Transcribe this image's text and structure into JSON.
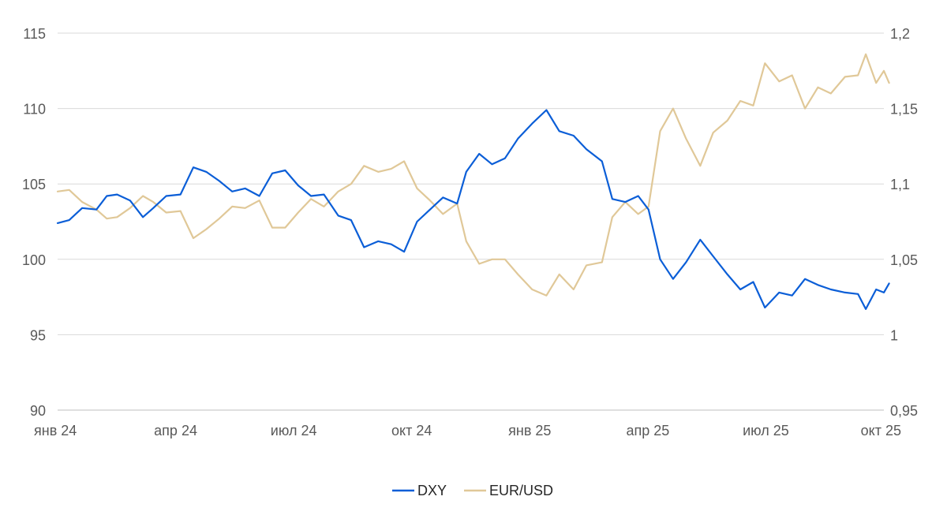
{
  "chart_data": {
    "type": "line",
    "title": "",
    "xlabel": "",
    "ylabel": "",
    "x_ticks": [
      "янв 24",
      "апр 24",
      "июл 24",
      "окт 24",
      "янв 25",
      "апр 25",
      "июл 25",
      "окт 25"
    ],
    "y_left": {
      "ticks": [
        "90",
        "95",
        "100",
        "105",
        "110",
        "115"
      ],
      "lim": [
        90,
        115
      ]
    },
    "y_right": {
      "ticks": [
        "0,95",
        "1",
        "1,05",
        "1,1",
        "1,15",
        "1,2"
      ],
      "lim": [
        0.95,
        1.2
      ]
    },
    "grid": true,
    "legend": "bottom-center",
    "series": [
      {
        "name": "DXY",
        "axis": "left",
        "color": "#0b5ed7",
        "points": [
          [
            "2024-01-01",
            102.4
          ],
          [
            "2024-01-10",
            102.6
          ],
          [
            "2024-01-20",
            103.4
          ],
          [
            "2024-01-31",
            103.3
          ],
          [
            "2024-02-08",
            104.2
          ],
          [
            "2024-02-16",
            104.3
          ],
          [
            "2024-02-26",
            103.9
          ],
          [
            "2024-03-07",
            102.8
          ],
          [
            "2024-03-15",
            103.4
          ],
          [
            "2024-03-25",
            104.2
          ],
          [
            "2024-04-05",
            104.3
          ],
          [
            "2024-04-15",
            106.1
          ],
          [
            "2024-04-25",
            105.8
          ],
          [
            "2024-05-05",
            105.2
          ],
          [
            "2024-05-15",
            104.5
          ],
          [
            "2024-05-25",
            104.7
          ],
          [
            "2024-06-05",
            104.2
          ],
          [
            "2024-06-15",
            105.7
          ],
          [
            "2024-06-25",
            105.9
          ],
          [
            "2024-07-05",
            104.9
          ],
          [
            "2024-07-15",
            104.2
          ],
          [
            "2024-07-25",
            104.3
          ],
          [
            "2024-08-05",
            102.9
          ],
          [
            "2024-08-15",
            102.6
          ],
          [
            "2024-08-25",
            100.8
          ],
          [
            "2024-09-05",
            101.2
          ],
          [
            "2024-09-15",
            101.0
          ],
          [
            "2024-09-25",
            100.5
          ],
          [
            "2024-10-05",
            102.5
          ],
          [
            "2024-10-15",
            103.3
          ],
          [
            "2024-10-25",
            104.1
          ],
          [
            "2024-11-05",
            103.7
          ],
          [
            "2024-11-12",
            105.8
          ],
          [
            "2024-11-22",
            107.0
          ],
          [
            "2024-12-02",
            106.3
          ],
          [
            "2024-12-12",
            106.7
          ],
          [
            "2024-12-22",
            108.0
          ],
          [
            "2025-01-02",
            109.0
          ],
          [
            "2025-01-13",
            109.9
          ],
          [
            "2025-01-23",
            108.5
          ],
          [
            "2025-02-03",
            108.2
          ],
          [
            "2025-02-13",
            107.3
          ],
          [
            "2025-02-25",
            106.5
          ],
          [
            "2025-03-05",
            104.0
          ],
          [
            "2025-03-15",
            103.8
          ],
          [
            "2025-03-25",
            104.2
          ],
          [
            "2025-04-02",
            103.3
          ],
          [
            "2025-04-11",
            100.0
          ],
          [
            "2025-04-21",
            98.7
          ],
          [
            "2025-05-01",
            99.8
          ],
          [
            "2025-05-12",
            101.3
          ],
          [
            "2025-05-22",
            100.2
          ],
          [
            "2025-06-02",
            99.0
          ],
          [
            "2025-06-12",
            98.0
          ],
          [
            "2025-06-22",
            98.5
          ],
          [
            "2025-07-01",
            96.8
          ],
          [
            "2025-07-12",
            97.8
          ],
          [
            "2025-07-22",
            97.6
          ],
          [
            "2025-08-01",
            98.7
          ],
          [
            "2025-08-11",
            98.3
          ],
          [
            "2025-08-21",
            98.0
          ],
          [
            "2025-09-01",
            97.8
          ],
          [
            "2025-09-11",
            97.7
          ],
          [
            "2025-09-17",
            96.7
          ],
          [
            "2025-09-25",
            98.0
          ],
          [
            "2025-10-01",
            97.8
          ],
          [
            "2025-10-05",
            98.4
          ]
        ]
      },
      {
        "name": "EUR/USD",
        "axis": "right",
        "color": "#e0c898",
        "points": [
          [
            "2024-01-01",
            1.095
          ],
          [
            "2024-01-10",
            1.096
          ],
          [
            "2024-01-20",
            1.088
          ],
          [
            "2024-01-31",
            1.083
          ],
          [
            "2024-02-08",
            1.077
          ],
          [
            "2024-02-16",
            1.078
          ],
          [
            "2024-02-26",
            1.084
          ],
          [
            "2024-03-07",
            1.092
          ],
          [
            "2024-03-15",
            1.088
          ],
          [
            "2024-03-25",
            1.081
          ],
          [
            "2024-04-05",
            1.082
          ],
          [
            "2024-04-15",
            1.064
          ],
          [
            "2024-04-25",
            1.07
          ],
          [
            "2024-05-05",
            1.077
          ],
          [
            "2024-05-15",
            1.085
          ],
          [
            "2024-05-25",
            1.084
          ],
          [
            "2024-06-05",
            1.089
          ],
          [
            "2024-06-15",
            1.071
          ],
          [
            "2024-06-25",
            1.071
          ],
          [
            "2024-07-05",
            1.081
          ],
          [
            "2024-07-15",
            1.09
          ],
          [
            "2024-07-25",
            1.085
          ],
          [
            "2024-08-05",
            1.095
          ],
          [
            "2024-08-15",
            1.1
          ],
          [
            "2024-08-25",
            1.112
          ],
          [
            "2024-09-05",
            1.108
          ],
          [
            "2024-09-15",
            1.11
          ],
          [
            "2024-09-25",
            1.115
          ],
          [
            "2024-10-05",
            1.097
          ],
          [
            "2024-10-15",
            1.089
          ],
          [
            "2024-10-25",
            1.08
          ],
          [
            "2024-11-05",
            1.087
          ],
          [
            "2024-11-12",
            1.062
          ],
          [
            "2024-11-22",
            1.047
          ],
          [
            "2024-12-02",
            1.05
          ],
          [
            "2024-12-12",
            1.05
          ],
          [
            "2024-12-22",
            1.04
          ],
          [
            "2025-01-02",
            1.03
          ],
          [
            "2025-01-13",
            1.026
          ],
          [
            "2025-01-23",
            1.04
          ],
          [
            "2025-02-03",
            1.03
          ],
          [
            "2025-02-13",
            1.046
          ],
          [
            "2025-02-25",
            1.048
          ],
          [
            "2025-03-05",
            1.078
          ],
          [
            "2025-03-15",
            1.088
          ],
          [
            "2025-03-25",
            1.08
          ],
          [
            "2025-04-02",
            1.085
          ],
          [
            "2025-04-11",
            1.135
          ],
          [
            "2025-04-21",
            1.15
          ],
          [
            "2025-05-01",
            1.13
          ],
          [
            "2025-05-12",
            1.112
          ],
          [
            "2025-05-22",
            1.134
          ],
          [
            "2025-06-02",
            1.142
          ],
          [
            "2025-06-12",
            1.155
          ],
          [
            "2025-06-22",
            1.152
          ],
          [
            "2025-07-01",
            1.18
          ],
          [
            "2025-07-12",
            1.168
          ],
          [
            "2025-07-22",
            1.172
          ],
          [
            "2025-08-01",
            1.15
          ],
          [
            "2025-08-11",
            1.164
          ],
          [
            "2025-08-21",
            1.16
          ],
          [
            "2025-09-01",
            1.171
          ],
          [
            "2025-09-11",
            1.172
          ],
          [
            "2025-09-17",
            1.186
          ],
          [
            "2025-09-25",
            1.167
          ],
          [
            "2025-10-01",
            1.175
          ],
          [
            "2025-10-05",
            1.167
          ]
        ]
      }
    ]
  }
}
